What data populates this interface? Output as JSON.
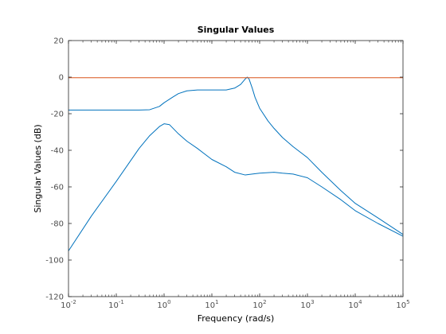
{
  "chart_data": {
    "type": "line",
    "title": "Singular Values",
    "xlabel": "Frequency (rad/s)",
    "ylabel": "Singular Values (dB)",
    "x_scale": "log",
    "xlim": [
      0.01,
      100000
    ],
    "ylim": [
      -120,
      20
    ],
    "x_ticks": [
      {
        "value": 0.01,
        "base": "10",
        "exp": "-2"
      },
      {
        "value": 0.1,
        "base": "10",
        "exp": "-1"
      },
      {
        "value": 1,
        "base": "10",
        "exp": "0"
      },
      {
        "value": 10,
        "base": "10",
        "exp": "1"
      },
      {
        "value": 100,
        "base": "10",
        "exp": "2"
      },
      {
        "value": 1000,
        "base": "10",
        "exp": "3"
      },
      {
        "value": 10000,
        "base": "10",
        "exp": "4"
      },
      {
        "value": 100000,
        "base": "10",
        "exp": "5"
      }
    ],
    "y_ticks": [
      20,
      0,
      -20,
      -40,
      -60,
      -80,
      -100,
      -120
    ],
    "grid": false,
    "colors": {
      "series_blue": "#0072bd",
      "series_orange": "#d95319",
      "axis": "#262626"
    },
    "series": [
      {
        "color": "#0072bd",
        "x": [
          0.01,
          0.1,
          0.3,
          0.5,
          0.8,
          1,
          1.5,
          2,
          3,
          5,
          10,
          20,
          30,
          40,
          50,
          55,
          60,
          70,
          80,
          100,
          150,
          200,
          300,
          500,
          1000,
          2000,
          5000,
          10000,
          30000,
          100000
        ],
        "y": [
          -18,
          -18,
          -18,
          -17.8,
          -16,
          -14,
          -11,
          -9,
          -7.5,
          -7,
          -7,
          -7,
          -6,
          -4,
          -1,
          0,
          -1,
          -6,
          -11,
          -17,
          -24,
          -28,
          -33,
          -38,
          -44,
          -52,
          -62,
          -69,
          -77,
          -86
        ]
      },
      {
        "color": "#0072bd",
        "x": [
          0.01,
          0.03,
          0.1,
          0.3,
          0.5,
          0.8,
          1,
          1.3,
          2,
          3,
          5,
          10,
          20,
          30,
          50,
          70,
          100,
          200,
          300,
          500,
          1000,
          2000,
          5000,
          10000,
          30000,
          100000
        ],
        "y": [
          -95,
          -76,
          -57,
          -39,
          -32,
          -27,
          -25.5,
          -26,
          -31,
          -35,
          -39,
          -45,
          -49,
          -52,
          -53.5,
          -53,
          -52.5,
          -52,
          -52.5,
          -53,
          -55,
          -60,
          -67,
          -73,
          -80,
          -87
        ]
      },
      {
        "color": "#d95319",
        "x": [
          0.01,
          100000
        ],
        "y": [
          -0.3,
          -0.3
        ]
      }
    ]
  }
}
